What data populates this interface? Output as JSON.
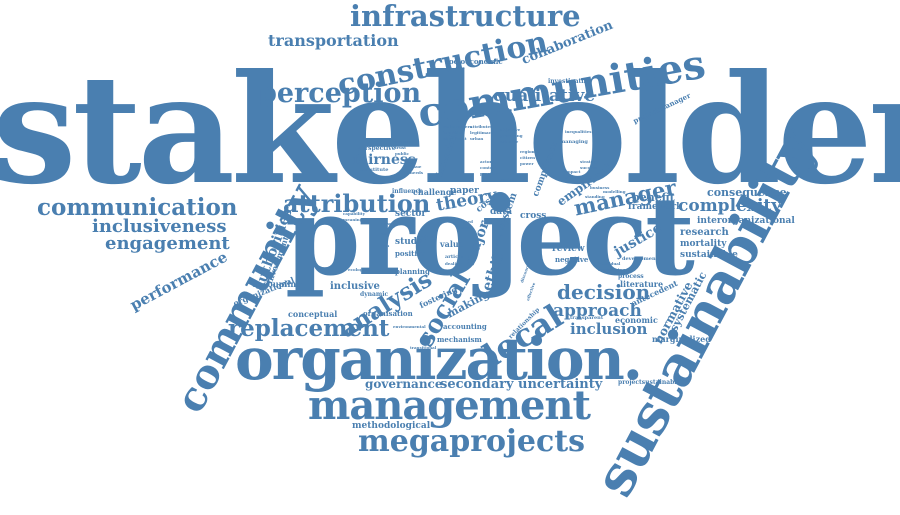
{
  "color": "#4a7fb0",
  "words": [
    {
      "key": "stakeholder",
      "text": "stakeholder"
    },
    {
      "key": "project",
      "text": "project"
    },
    {
      "key": "organization",
      "text": "organization."
    },
    {
      "key": "sustainability",
      "text": "sustainability"
    },
    {
      "key": "community",
      "text": "community"
    },
    {
      "key": "management",
      "text": "management"
    },
    {
      "key": "communities",
      "text": "communities"
    },
    {
      "key": "infrastructure",
      "text": "infrastructure"
    },
    {
      "key": "construction",
      "text": "construction"
    },
    {
      "key": "megaprojects",
      "text": "megaprojects"
    },
    {
      "key": "perception",
      "text": "perception"
    },
    {
      "key": "communication",
      "text": "communication"
    },
    {
      "key": "attribution",
      "text": "attribution"
    },
    {
      "key": "replacement",
      "text": "replacement"
    },
    {
      "key": "local",
      "text": "local"
    },
    {
      "key": "analysis",
      "text": "analysis"
    },
    {
      "key": "inclusiveness",
      "text": "inclusiveness"
    },
    {
      "key": "engagement",
      "text": "engagement"
    },
    {
      "key": "transportation",
      "text": "transportation"
    },
    {
      "key": "qualitative",
      "text": "qualitative"
    },
    {
      "key": "manager",
      "text": "manager"
    },
    {
      "key": "decision",
      "text": "decision"
    },
    {
      "key": "complexity",
      "text": "complexity"
    },
    {
      "key": "approach",
      "text": "approach"
    },
    {
      "key": "social",
      "text": "social"
    },
    {
      "key": "theory",
      "text": "theory"
    },
    {
      "key": "performance",
      "text": "performance"
    },
    {
      "key": "fairness",
      "text": "fairness"
    },
    {
      "key": "collaboration",
      "text": "collaboration"
    },
    {
      "key": "authorities",
      "text": "authorities"
    },
    {
      "key": "governance",
      "text": "governance"
    },
    {
      "key": "secondary",
      "text": "secondary"
    },
    {
      "key": "uncertainty",
      "text": "uncertainty"
    },
    {
      "key": "inclusion",
      "text": "inclusion"
    },
    {
      "key": "consequence",
      "text": "consequence"
    },
    {
      "key": "major",
      "text": "major"
    },
    {
      "key": "ethic",
      "text": "ethic"
    },
    {
      "key": "justice",
      "text": "justice"
    },
    {
      "key": "empirical",
      "text": "empirical"
    },
    {
      "key": "normative",
      "text": "normative"
    },
    {
      "key": "systematic",
      "text": "systematic"
    },
    {
      "key": "benefit",
      "text": "benefit"
    },
    {
      "key": "framework",
      "text": "framework"
    },
    {
      "key": "interorganizational",
      "text": "interorganizational"
    },
    {
      "key": "research",
      "text": "research"
    },
    {
      "key": "mortality",
      "text": "mortality"
    },
    {
      "key": "sustainable",
      "text": "sustainable"
    },
    {
      "key": "marginalized",
      "text": "marginalized"
    },
    {
      "key": "antecedent",
      "text": "antecedent"
    },
    {
      "key": "economic",
      "text": "economic"
    },
    {
      "key": "literature",
      "text": "literature"
    },
    {
      "key": "inclusive",
      "text": "inclusive"
    },
    {
      "key": "methodological",
      "text": "methodological"
    },
    {
      "key": "conceptual",
      "text": "conceptual"
    },
    {
      "key": "organisation",
      "text": "organisation"
    },
    {
      "key": "accounting",
      "text": "accounting"
    },
    {
      "key": "mechanism",
      "text": "mechanism"
    },
    {
      "key": "making",
      "text": "making"
    },
    {
      "key": "fostering",
      "text": "fostering"
    },
    {
      "key": "decoupling",
      "text": "decoupling"
    },
    {
      "key": "organizational",
      "text": "organizational"
    },
    {
      "key": "investment",
      "text": "investment"
    },
    {
      "key": "socioeconomic",
      "text": "socioeconomic"
    },
    {
      "key": "investigating",
      "text": "investigating"
    },
    {
      "key": "projectmanager",
      "text": "projectmanager"
    },
    {
      "key": "projectsustainability",
      "text": "projectsustainability"
    },
    {
      "key": "perspective",
      "text": "perspective"
    },
    {
      "key": "challenge",
      "text": "challenge"
    },
    {
      "key": "influence",
      "text": "influence"
    },
    {
      "key": "paper",
      "text": "paper"
    },
    {
      "key": "sector",
      "text": "sector"
    },
    {
      "key": "cost",
      "text": "cost"
    },
    {
      "key": "data",
      "text": "data"
    },
    {
      "key": "cross",
      "text": "cross"
    },
    {
      "key": "system",
      "text": "system"
    },
    {
      "key": "review",
      "text": "review"
    },
    {
      "key": "negative",
      "text": "negative"
    },
    {
      "key": "care",
      "text": "care"
    },
    {
      "key": "value",
      "text": "value"
    },
    {
      "key": "study",
      "text": "study"
    },
    {
      "key": "positive",
      "text": "positive"
    },
    {
      "key": "planning",
      "text": "planning"
    },
    {
      "key": "dynamic",
      "text": "dynamic"
    },
    {
      "key": "relationship",
      "text": "relationship"
    },
    {
      "key": "process",
      "text": "process"
    },
    {
      "key": "transparent",
      "text": "transparent"
    },
    {
      "key": "development",
      "text": "development"
    },
    {
      "key": "intended",
      "text": "intended"
    },
    {
      "key": "compliance",
      "text": "compliance"
    },
    {
      "key": "constitute",
      "text": "constitute"
    },
    {
      "key": "managing",
      "text": "managing"
    },
    {
      "key": "inequalities",
      "text": "inequalities"
    },
    {
      "key": "modelling",
      "text": "modelling"
    },
    {
      "key": "business",
      "text": "business"
    },
    {
      "key": "standing",
      "text": "standing"
    },
    {
      "key": "transitional",
      "text": "transitional"
    },
    {
      "key": "environmental",
      "text": "environmental"
    },
    {
      "key": "ecological",
      "text": "ecological"
    },
    {
      "key": "capability",
      "text": "capability"
    },
    {
      "key": "meaning",
      "text": "meaning"
    },
    {
      "key": "article",
      "text": "article"
    },
    {
      "key": "dealing",
      "text": "dealing"
    },
    {
      "key": "based",
      "text": "based"
    },
    {
      "key": "local2",
      "text": "local"
    },
    {
      "key": "individual",
      "text": "individual"
    },
    {
      "key": "engineering",
      "text": "engineering"
    },
    {
      "key": "discourse",
      "text": "discourse"
    },
    {
      "key": "effective",
      "text": "effective"
    },
    {
      "key": "contracting",
      "text": "contracting"
    },
    {
      "key": "stakeholders",
      "text": "stakeholders"
    },
    {
      "key": "identified",
      "text": "identified"
    },
    {
      "key": "significant",
      "text": "significant"
    },
    {
      "key": "attributes",
      "text": "attributes"
    },
    {
      "key": "legitimacy",
      "text": "legitimacy"
    },
    {
      "key": "urban",
      "text": "urban"
    },
    {
      "key": "objective",
      "text": "objective"
    },
    {
      "key": "governing",
      "text": "governing"
    },
    {
      "key": "salience",
      "text": "salience"
    },
    {
      "key": "regional",
      "text": "regional"
    },
    {
      "key": "citizen",
      "text": "citizen"
    },
    {
      "key": "power",
      "text": "power"
    },
    {
      "key": "outcome",
      "text": "outcome"
    },
    {
      "key": "trust",
      "text": "trust"
    },
    {
      "key": "public",
      "text": "public"
    },
    {
      "key": "issue",
      "text": "issue"
    },
    {
      "key": "needs",
      "text": "needs"
    },
    {
      "key": "actors",
      "text": "actors"
    },
    {
      "key": "context",
      "text": "context"
    },
    {
      "key": "practice",
      "text": "practice"
    },
    {
      "key": "model",
      "text": "model"
    },
    {
      "key": "impact",
      "text": "impact"
    },
    {
      "key": "effects",
      "text": "effects"
    },
    {
      "key": "strategy",
      "text": "strategy"
    },
    {
      "key": "success",
      "text": "success"
    },
    {
      "key": "risk",
      "text": "risk"
    },
    {
      "key": "network",
      "text": "network"
    },
    {
      "key": "firm",
      "text": "firm"
    }
  ]
}
